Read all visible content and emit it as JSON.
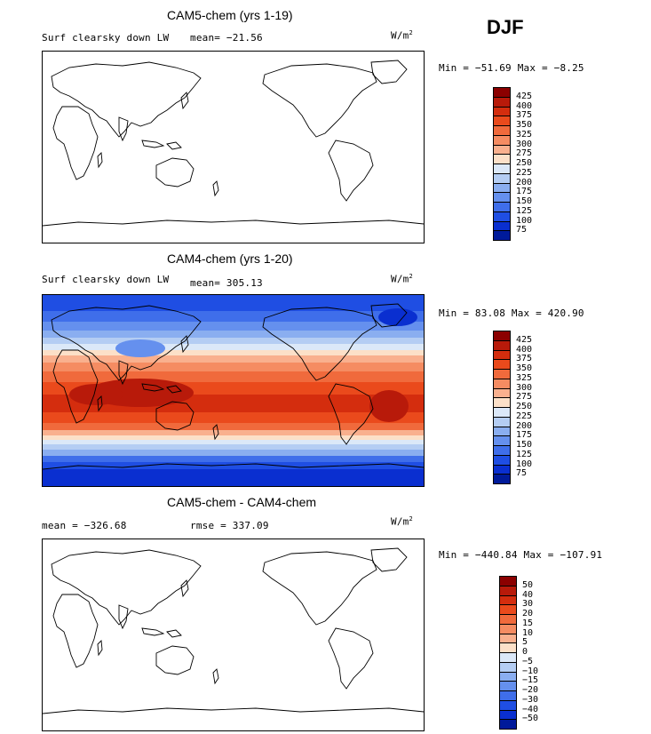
{
  "season": "DJF",
  "units": "W/m",
  "units_sup": "2",
  "panels": [
    {
      "title": "CAM5-chem (yrs 1-19)",
      "left_label": "Surf clearsky down LW",
      "stat_label": "mean= −21.56",
      "minmax": "Min = −51.69 Max =  −8.25",
      "filled": false,
      "colorbar_labels": [
        "425",
        "400",
        "375",
        "350",
        "325",
        "300",
        "275",
        "250",
        "225",
        "200",
        "175",
        "150",
        "125",
        "100",
        "75"
      ]
    },
    {
      "title": "CAM4-chem (yrs 1-20)",
      "left_label": "Surf clearsky down LW",
      "stat_label": "mean= 305.13",
      "minmax": "Min =  83.08 Max = 420.90",
      "filled": true,
      "colorbar_labels": [
        "425",
        "400",
        "375",
        "350",
        "325",
        "300",
        "275",
        "250",
        "225",
        "200",
        "175",
        "150",
        "125",
        "100",
        "75"
      ]
    },
    {
      "title": "CAM5-chem - CAM4-chem",
      "left_label": "mean = −326.68",
      "stat_label": "rmse = 337.09",
      "minmax": "Min = −440.84 Max = −107.91",
      "filled": false,
      "colorbar_labels": [
        "50",
        "40",
        "30",
        "20",
        "15",
        "10",
        "5",
        "0",
        "−5",
        "−10",
        "−15",
        "−20",
        "−30",
        "−40",
        "−50"
      ]
    }
  ],
  "colors": {
    "scale": [
      "#8b0000",
      "#b81a0a",
      "#d42d0e",
      "#ea4a1c",
      "#f06a3c",
      "#f58c62",
      "#f9b08e",
      "#fce0c8",
      "#dbe8f8",
      "#b4cdf3",
      "#8aaef0",
      "#6590ee",
      "#3f6eea",
      "#1f4ee3",
      "#0a2fd0",
      "#001a9a"
    ],
    "land_outline": "#000000"
  }
}
